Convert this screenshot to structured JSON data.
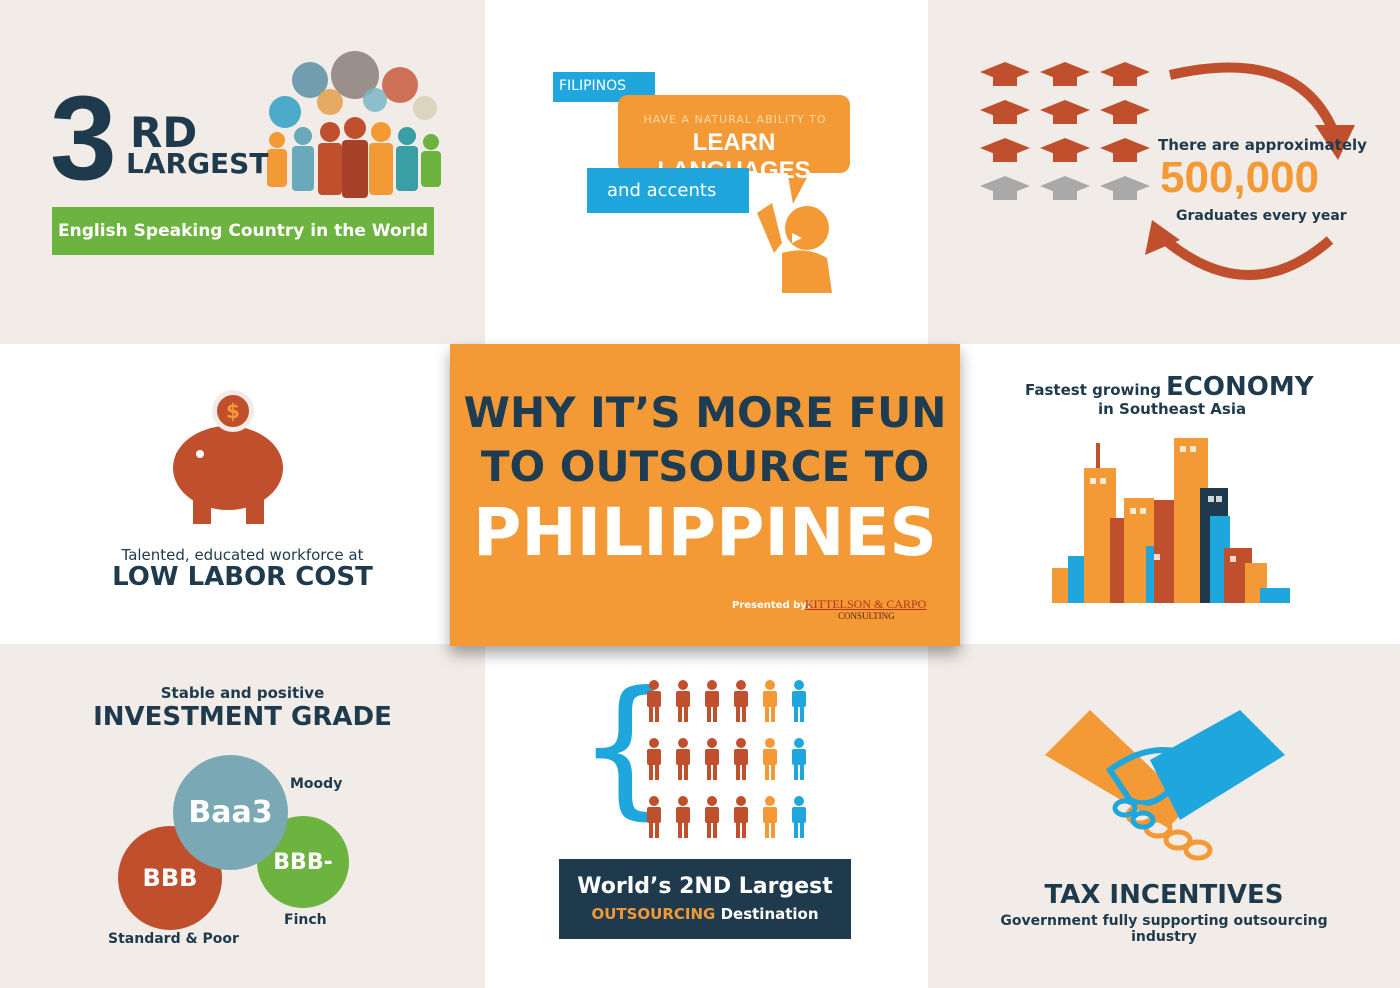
{
  "english": {
    "number": "3",
    "suffix": "RD",
    "largest": "LARGEST",
    "banner": "English Speaking Country in the World"
  },
  "languages": {
    "label1": "FILIPINOS",
    "label2": "HAVE A NATURAL ABILITY TO",
    "label3": "LEARN LANGUAGES",
    "label4": "and accents"
  },
  "graduates": {
    "line1": "There are approximately",
    "number": "500,000",
    "line2": "Graduates every year"
  },
  "labor": {
    "line1": "Talented, educated workforce at",
    "line2": "LOW LABOR COST",
    "coin_symbol": "$"
  },
  "center": {
    "line1": "WHY IT’S MORE FUN",
    "line2": "TO OUTSOURCE TO",
    "line3": "PHILIPPINES",
    "presented_by": "Presented by:",
    "company": "KITTELSON & CARPO",
    "company_sub": "CONSULTING"
  },
  "economy": {
    "line1a": "Fastest growing",
    "line1b": "ECONOMY",
    "line2": "in Southeast Asia"
  },
  "investment": {
    "line1": "Stable and positive",
    "line2": "INVESTMENT GRADE",
    "baa3": "Baa3",
    "moody": "Moody",
    "bbb": "BBB",
    "bbb_minus": "BBB-",
    "finch": "Finch",
    "sp": "Standard & Poor"
  },
  "outsourcing": {
    "line1": "World’s 2ND Largest",
    "line2a": "OUTSOURCING",
    "line2b": "Destination"
  },
  "tax": {
    "line1": "TAX INCENTIVES",
    "line2": "Government fully supporting outsourcing industry"
  },
  "colors": {
    "navy": "#1f3a4d",
    "orange": "#f39a36",
    "green": "#6cb33f",
    "blue": "#1fa7dd",
    "rust": "#c0502d",
    "teal": "#3a9ea5",
    "beige": "#f1ece7"
  }
}
